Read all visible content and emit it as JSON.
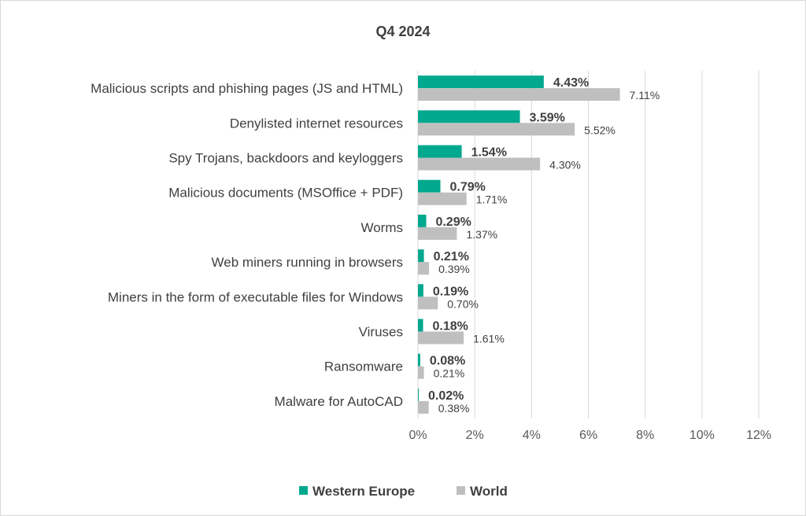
{
  "chart_data": {
    "type": "bar",
    "orientation": "horizontal",
    "title": "Q4 2024",
    "categories": [
      "Malicious scripts and phishing pages (JS and HTML)",
      "Denylisted internet resources",
      "Spy Trojans, backdoors and keyloggers",
      "Malicious documents (MSOffice + PDF)",
      "Worms",
      "Web miners running in browsers",
      "Miners in the form of executable files for Windows",
      "Viruses",
      "Ransomware",
      "Malware for AutoCAD"
    ],
    "series": [
      {
        "name": "Western Europe",
        "color": "#00a88e",
        "values": [
          4.43,
          3.59,
          1.54,
          0.79,
          0.29,
          0.21,
          0.19,
          0.18,
          0.08,
          0.02
        ],
        "labels": [
          "4.43%",
          "3.59%",
          "1.54%",
          "0.79%",
          "0.29%",
          "0.21%",
          "0.19%",
          "0.18%",
          "0.08%",
          "0.02%"
        ]
      },
      {
        "name": "World",
        "color": "#bfbfbf",
        "values": [
          7.11,
          5.52,
          4.3,
          1.71,
          1.37,
          0.39,
          0.7,
          1.61,
          0.21,
          0.38
        ],
        "labels": [
          "7.11%",
          "5.52%",
          "4.30%",
          "1.71%",
          "1.37%",
          "0.39%",
          "0.70%",
          "1.61%",
          "0.21%",
          "0.38%"
        ]
      }
    ],
    "xlim": [
      0,
      12
    ],
    "xticks": [
      0,
      2,
      4,
      6,
      8,
      10,
      12
    ],
    "xtick_labels": [
      "0%",
      "2%",
      "4%",
      "6%",
      "8%",
      "10%",
      "12%"
    ],
    "grid": "vertical",
    "legend_position": "bottom"
  }
}
